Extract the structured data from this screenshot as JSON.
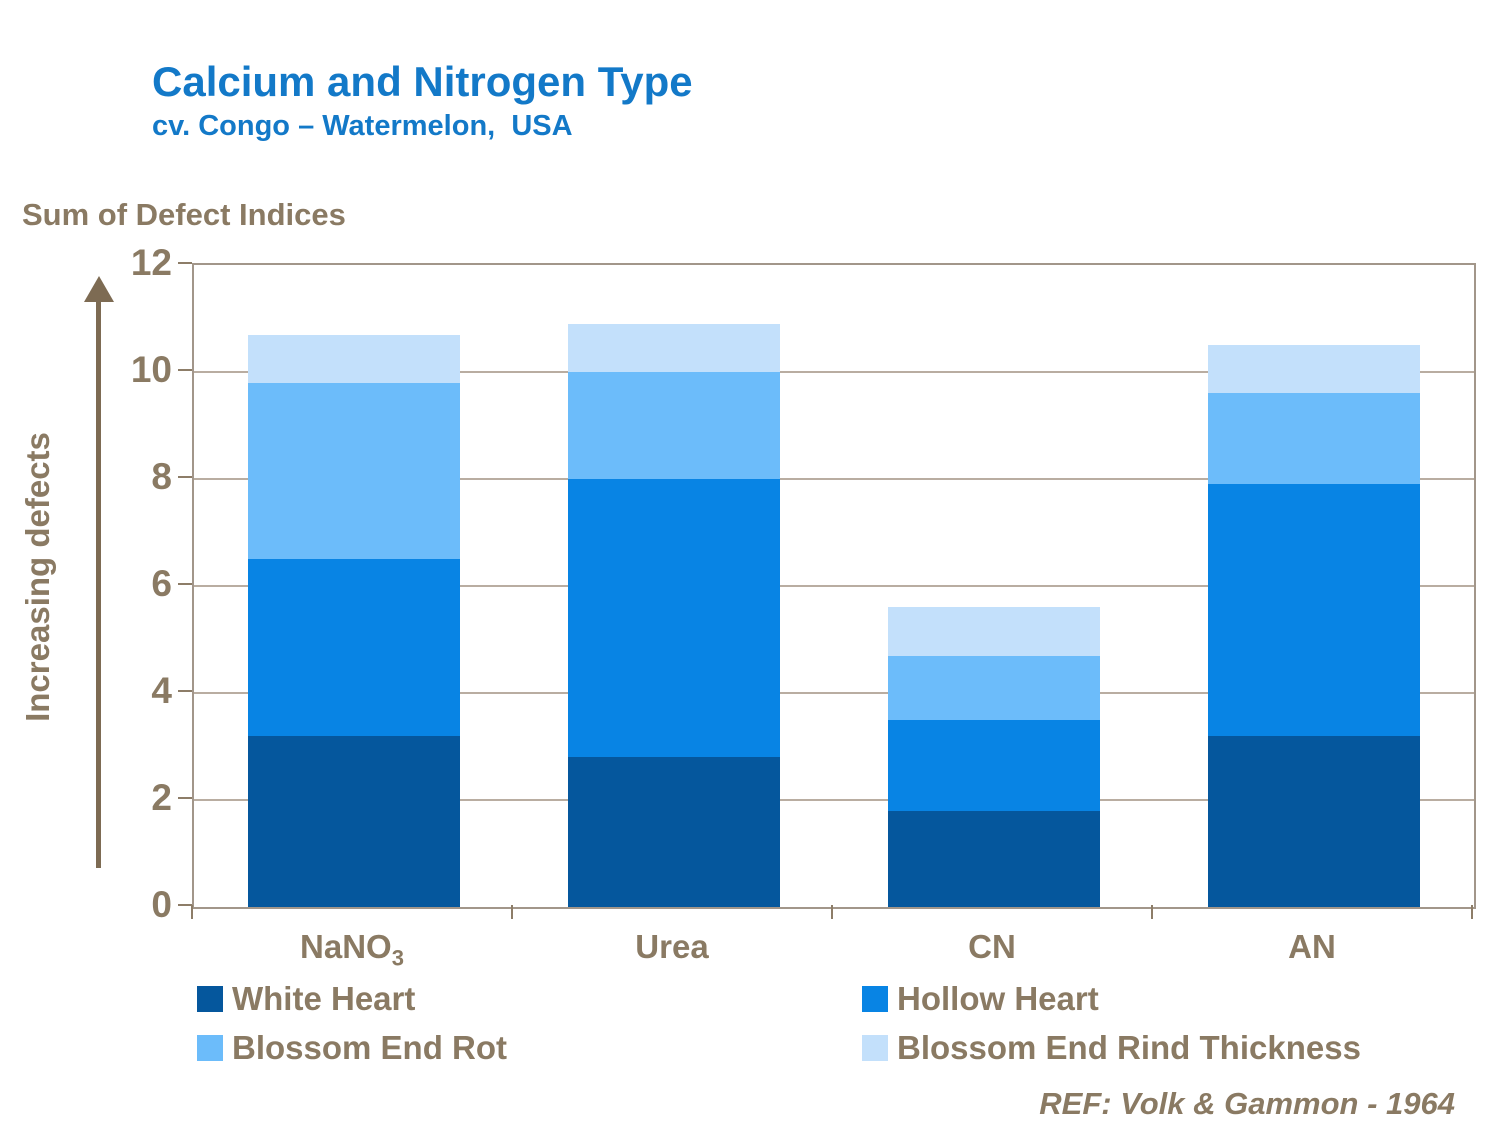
{
  "header": {
    "title": "Calcium and Nitrogen Type",
    "subtitle": "cv. Congo – Watermelon,  USA"
  },
  "chart_data": {
    "type": "bar",
    "variant": "stacked-vertical",
    "title": "Sum of Defect Indices",
    "ylabel": "Sum of Defect Indices",
    "arrow_label": "Increasing defects",
    "xlabel": "",
    "ylim": [
      0,
      12
    ],
    "yticks": [
      0,
      2,
      4,
      6,
      8,
      10,
      12
    ],
    "grid": true,
    "legend_position": "bottom",
    "categories": [
      {
        "text": "NaNO",
        "sub": "3"
      },
      {
        "text": "Urea",
        "sub": ""
      },
      {
        "text": "CN",
        "sub": ""
      },
      {
        "text": "AN",
        "sub": ""
      }
    ],
    "series": [
      {
        "name": "White Heart",
        "color": "#05579D",
        "values": [
          3.2,
          2.8,
          1.8,
          3.2
        ]
      },
      {
        "name": "Hollow Heart",
        "color": "#0884E4",
        "values": [
          3.3,
          5.2,
          1.7,
          4.7
        ]
      },
      {
        "name": "Blossom End Rot",
        "color": "#6CBCFA",
        "values": [
          3.3,
          2.0,
          1.2,
          1.7
        ]
      },
      {
        "name": "Blossom End Rind Thickness",
        "color": "#C3E0FB",
        "values": [
          0.9,
          0.9,
          0.9,
          0.9
        ]
      }
    ],
    "totals": [
      10.7,
      10.9,
      5.6,
      10.5
    ]
  },
  "footer": {
    "reference": "REF: Volk & Gammon - 1964"
  },
  "colors": {
    "title_blue": "#1379C8",
    "text_brown": "#8A7A63",
    "frame": "#A2968A",
    "gridline": "#B9ADA1",
    "tick": "#8D7D68",
    "arrow": "#7D6B53",
    "background": "#FFFFFF"
  }
}
